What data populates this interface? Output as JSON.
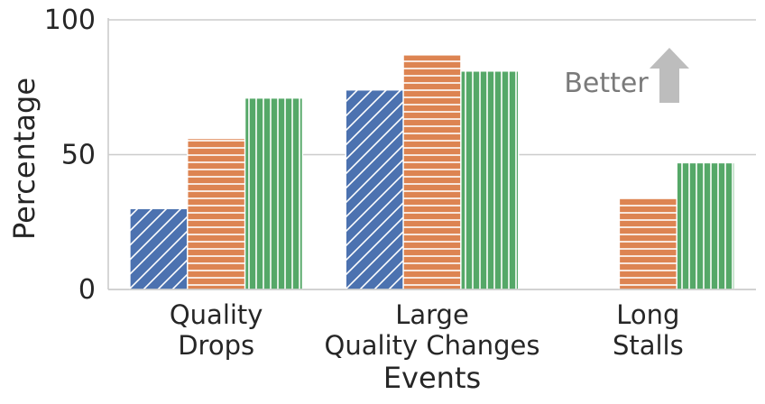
{
  "chart_data": {
    "type": "bar",
    "title": "",
    "xlabel": "Events",
    "ylabel": "Percentage",
    "ylim": [
      0,
      100
    ],
    "yticks": [
      0,
      50,
      100
    ],
    "grid": "y",
    "legend": "none",
    "categories": [
      [
        "Quality",
        "Drops"
      ],
      [
        "Large",
        "Quality Changes"
      ],
      [
        "Long",
        "Stalls"
      ]
    ],
    "series": [
      {
        "color": "#4c72b0",
        "hatch": "diagonal",
        "values": [
          30,
          74,
          null
        ]
      },
      {
        "color": "#dd8452",
        "hatch": "horizontal",
        "values": [
          56,
          87,
          34
        ]
      },
      {
        "color": "#55a868",
        "hatch": "vertical",
        "values": [
          71,
          81,
          47
        ]
      }
    ],
    "annotation": {
      "text": "Better",
      "arrow": "up",
      "color": "#bdbdbd"
    }
  }
}
